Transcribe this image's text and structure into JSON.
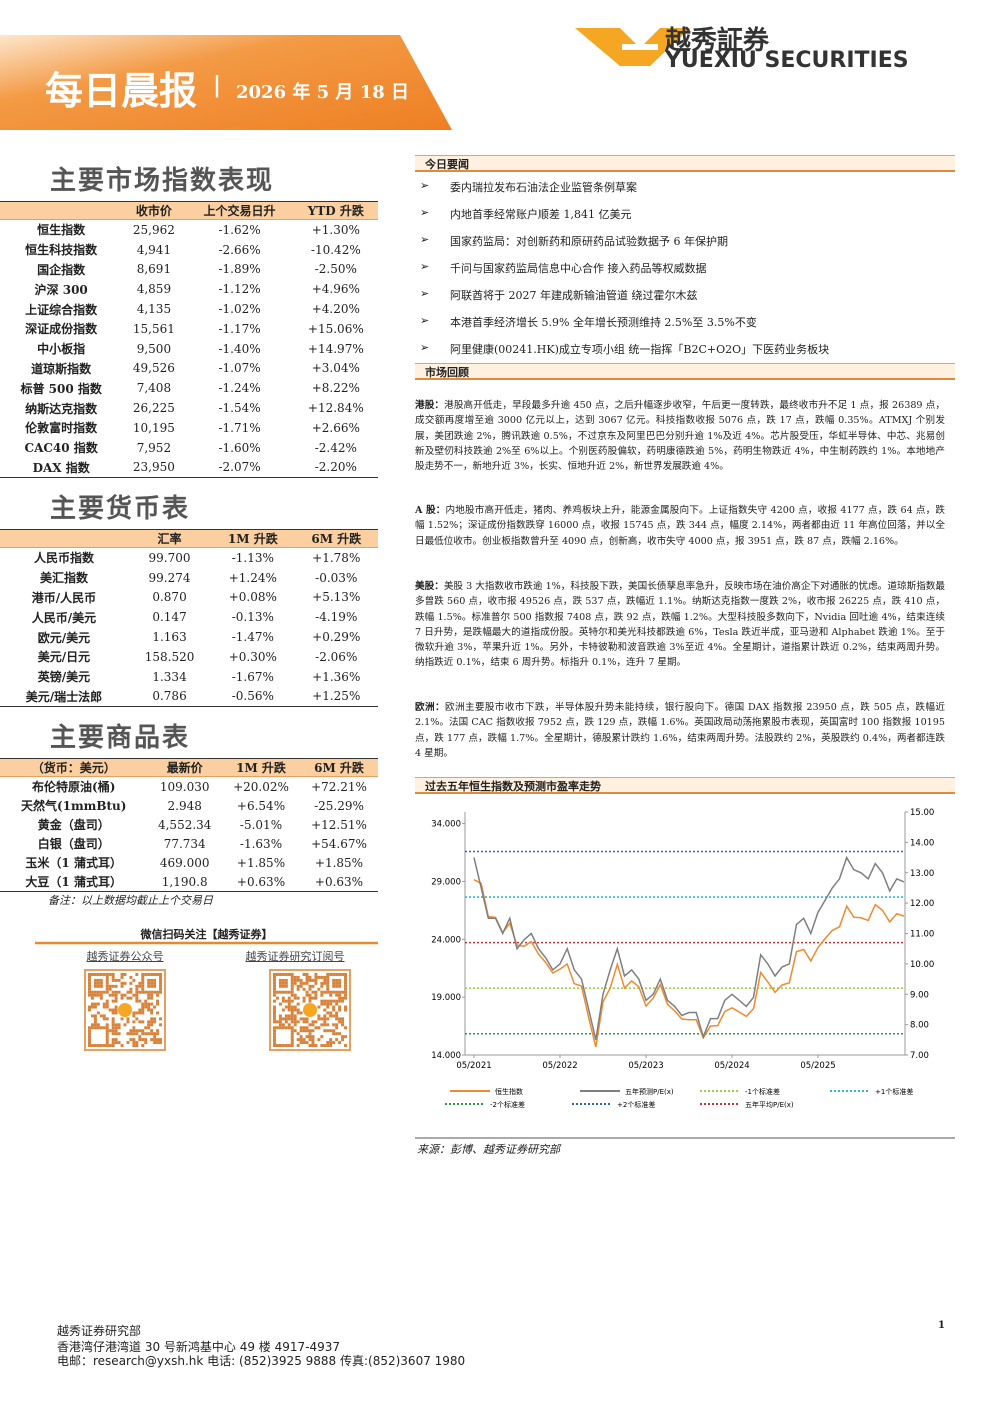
{
  "header": {
    "title": "每日晨报",
    "date": "2026 年 5 月 18 日",
    "logo_cn": "越秀証券",
    "logo_en": "YUEXIU SECURITIES"
  },
  "market_indices": {
    "title": "主要市场指数表现",
    "columns": [
      "收市价",
      "上个交易日升",
      "YTD 升跌"
    ],
    "rows": [
      [
        "恒生指数",
        "25,962",
        "-1.62%",
        "+1.30%"
      ],
      [
        "恒生科技指数",
        "4,941",
        "-2.66%",
        "-10.42%"
      ],
      [
        "国企指数",
        "8,691",
        "-1.89%",
        "-2.50%"
      ],
      [
        "沪深 300",
        "4,859",
        "-1.12%",
        "+4.96%"
      ],
      [
        "上证综合指数",
        "4,135",
        "-1.02%",
        "+4.20%"
      ],
      [
        "深证成份指数",
        "15,561",
        "-1.17%",
        "+15.06%"
      ],
      [
        "中小板指",
        "9,500",
        "-1.40%",
        "+14.97%"
      ],
      [
        "道琼斯指数",
        "49,526",
        "-1.07%",
        "+3.04%"
      ],
      [
        "标普 500 指数",
        "7,408",
        "-1.24%",
        "+8.22%"
      ],
      [
        "纳斯达克指数",
        "26,225",
        "-1.54%",
        "+12.84%"
      ],
      [
        "伦敦富时指数",
        "10,195",
        "-1.71%",
        "+2.66%"
      ],
      [
        "CAC40 指数",
        "7,952",
        "-1.60%",
        "-2.42%"
      ],
      [
        "DAX 指数",
        "23,950",
        "-2.07%",
        "-2.20%"
      ]
    ]
  },
  "currency": {
    "title": "主要货币表",
    "columns": [
      "汇率",
      "1M 升跌",
      "6M 升跌"
    ],
    "rows": [
      [
        "人民币指数",
        "99.700",
        "-1.13%",
        "+1.78%"
      ],
      [
        "美汇指数",
        "99.274",
        "+1.24%",
        "-0.03%"
      ],
      [
        "港币/人民币",
        "0.870",
        "+0.08%",
        "+5.13%"
      ],
      [
        "人民币/美元",
        "0.147",
        "-0.13%",
        "-4.19%"
      ],
      [
        "欧元/美元",
        "1.163",
        "-1.47%",
        "+0.29%"
      ],
      [
        "美元/日元",
        "158.520",
        "+0.30%",
        "-2.06%"
      ],
      [
        "英镑/美元",
        "1.334",
        "-1.67%",
        "+1.36%"
      ],
      [
        "美元/瑞士法郎",
        "0.786",
        "-0.56%",
        "+1.25%"
      ]
    ]
  },
  "commodity": {
    "title": "主要商品表",
    "corner": "（货币：美元）",
    "columns": [
      "最新价",
      "1M 升跌",
      "6M 升跌"
    ],
    "rows": [
      [
        "布伦特原油(桶)",
        "109.030",
        "+20.02%",
        "+72.21%"
      ],
      [
        "天然气(1mmBtu)",
        "2.948",
        "+6.54%",
        "-25.29%"
      ],
      [
        "黄金（盘司）",
        "4,552.34",
        "-5.01%",
        "+12.51%"
      ],
      [
        "白银（盘司）",
        "77.734",
        "-1.63%",
        "+54.67%"
      ],
      [
        "玉米（1 蒲式耳）",
        "469.000",
        "+1.85%",
        "+1.85%"
      ],
      [
        "大豆（1 蒲式耳）",
        "1,190.8",
        "+0.63%",
        "+0.63%"
      ]
    ]
  },
  "note": "备注：以上数据均截止上个交易日",
  "wechat": {
    "title": "微信扫码关注【越秀证券】",
    "labels": [
      "越秀证券公众号",
      "越秀证券研究订阅号"
    ]
  },
  "news": {
    "title": "今日要闻",
    "items": [
      "委内瑞拉发布石油法企业监管条例草案",
      "内地首季经常账户顺差 1,841 亿美元",
      "国家药监局：对创新药和原研药品试验数据予 6 年保护期",
      "千问与国家药监局信息中心合作 接入药品等权威数据",
      "阿联酋将于 2027 年建成新输油管道 绕过霍尔木兹",
      "本港首季经济增长 5.9% 全年增长预测维持 2.5%至 3.5%不变",
      "阿里健康(00241.HK)成立专项小组 统一指挥「B2C+O2O」下医药业务板块"
    ]
  },
  "review": {
    "title": "市场回顾",
    "paragraphs": [
      {
        "label": "港股：",
        "text": "港股高开低走，早段最多升逾 450 点，之后升幅逐步收窄，午后更一度转跌，最终收市升不足 1 点，报 26389 点，成交额再度增至逾 3000 亿元以上，达到 3067 亿元。科技指数收报 5076 点，跌 17 点，跌幅 0.35%。ATMXJ 个别发展，美团跌逾 2%，腾讯跌逾 0.5%，不过京东及阿里巴巴分别升逾 1%及近 4%。芯片股受压，华虹半导体、中芯、兆易创新及壁仞科技跌逾 2%至 6%以上。个别医药股偏软，药明康德跌逾 5%，药明生物跌近 4%，中生制药跌约 1%。本地地产股走势不一，新地升近 3%，长实、恒地升近 2%，新世界发展跌逾 4%。"
      },
      {
        "label": "A 股：",
        "text": "内地股市高开低走，猪肉、养鸡板块上升，能源金属股向下。上证指数失守 4200 点，收报 4177 点，跌 64 点，跌幅 1.52%；深证成份指数跌穿 16000 点，收报 15745 点，跌 344 点，幅度 2.14%，两者都由近 11 年高位回落，并以全日最低位收市。创业板指数曾升至 4090 点，创新高，收市失守 4000 点，报 3951 点，跌 87 点，跌幅 2.16%。"
      },
      {
        "label": "美股：",
        "text": "美股 3 大指数收市跌逾 1%，科技股下跌，美国长债孳息率急升，反映市场在油价高企下对通胀的忧虑。道琼斯指数最多曾跌 560 点，收市报 49526 点，跌 537 点，跌幅近 1.1%。纳斯达克指数一度跌 2%，收市报 26225 点，跌 410 点，跌幅 1.5%。标准普尔 500 指数报 7408 点，跌 92 点，跌幅 1.2%。大型科技股多数向下，Nvidia 回吐逾 4%，结束连续 7 日升势，是跌幅最大的道指成份股。英特尔和美光科技都跌逾 6%，Tesla 跌近半成，亚马逊和 Alphabet 跌逾 1%。至于微软升逾 3%，苹果升近 1%。另外，卡特彼勒和波音跌逾 3%至近 4%。全星期计，道指累计跌近 0.2%，结束两周升势。纳指跌近 0.1%，结束 6 周升势。标指升 0.1%，连升 7 星期。"
      },
      {
        "label": "欧洲：",
        "text": "欧洲主要股市收市下跌，半导体股升势未能持续，银行股向下。德国 DAX 指数报 23950 点，跌 505 点，跌幅近 2.1%。法国 CAC 指数收报 7952 点，跌 129 点，跌幅 1.6%。英国政局动荡拖累股市表现，英国富时 100 指数报 10195 点，跌 177 点，跌幅 1.7%。全星期计，德股累计跌约 1.6%，结束两周升势。法股跌约 2%，英股跌约 0.4%，两者都连跌 4 星期。"
      }
    ]
  },
  "chart_data": {
    "type": "line",
    "title": "过去五年恒生指数及预测市盈率走势",
    "categories": [
      "05/2021",
      null,
      null,
      null,
      null,
      null,
      null,
      null,
      null,
      null,
      null,
      null,
      "05/2022",
      null,
      null,
      null,
      null,
      null,
      null,
      null,
      null,
      null,
      null,
      null,
      "05/2023",
      null,
      null,
      null,
      null,
      null,
      null,
      null,
      null,
      null,
      null,
      null,
      "05/2024",
      null,
      null,
      null,
      null,
      null,
      null,
      null,
      null,
      null,
      null,
      null,
      "05/2025",
      null,
      null,
      null,
      null,
      null,
      null,
      null,
      null,
      null,
      null,
      null,
      null
    ],
    "ylim": [
      14000,
      35000
    ],
    "yticks": [
      {
        "value": 14000,
        "label": "14.000"
      },
      {
        "value": 19000,
        "label": "19.000"
      },
      {
        "value": 24000,
        "label": "24.000"
      },
      {
        "value": 29000,
        "label": "29.000"
      },
      {
        "value": 34000,
        "label": "34.000"
      }
    ],
    "y2lim": [
      7,
      15
    ],
    "y2ticks": [
      {
        "value": 7,
        "label": "7.00"
      },
      {
        "value": 8,
        "label": "8.00"
      },
      {
        "value": 9,
        "label": "9.00"
      },
      {
        "value": 10,
        "label": "10.00"
      },
      {
        "value": 11,
        "label": "11.00"
      },
      {
        "value": 12,
        "label": "12.00"
      },
      {
        "value": 13,
        "label": "13.00"
      },
      {
        "value": 14,
        "label": "14.00"
      },
      {
        "value": 15,
        "label": "15.00"
      }
    ],
    "series": [
      {
        "name": "恒生指数",
        "color": "#ef8a2e",
        "axis": "y",
        "values": [
          29150,
          28830,
          25960,
          25880,
          24580,
          25380,
          23480,
          23400,
          23800,
          22710,
          21990,
          21090,
          21420,
          21860,
          20160,
          19950,
          17220,
          14690,
          18600,
          19780,
          21840,
          19790,
          20400,
          19890,
          18230,
          18920,
          20080,
          18380,
          17810,
          17110,
          17040,
          17050,
          15490,
          16510,
          16540,
          17760,
          18080,
          17720,
          17340,
          17990,
          21130,
          20320,
          19420,
          20060,
          20230,
          22940,
          23120,
          22120,
          23290,
          24070,
          24770,
          25080,
          26860,
          25910,
          25860,
          25630,
          27000,
          26500,
          25500,
          26200,
          26000
        ]
      },
      {
        "name": "五年预测P/E(x)",
        "color": "#7f7f7f",
        "axis": "y2",
        "values": [
          13.5,
          12.5,
          11.5,
          11.5,
          11.0,
          11.5,
          10.5,
          10.8,
          11.0,
          10.5,
          10.2,
          9.8,
          10.0,
          10.5,
          9.8,
          9.5,
          8.5,
          7.5,
          9.0,
          9.8,
          10.5,
          9.6,
          9.8,
          9.5,
          8.8,
          9.0,
          9.5,
          8.8,
          8.6,
          8.3,
          8.4,
          8.4,
          7.6,
          8.2,
          8.2,
          8.8,
          9.0,
          8.8,
          8.6,
          8.9,
          10.3,
          10.0,
          9.6,
          9.9,
          10.0,
          11.3,
          11.5,
          11.0,
          11.7,
          12.1,
          12.5,
          12.8,
          13.5,
          13.1,
          13.0,
          12.8,
          13.3,
          13.0,
          12.4,
          12.8,
          12.7
        ]
      }
    ],
    "hlines": [
      {
        "name": "-1个标准差",
        "color": "#9bd14f",
        "value": 9.2
      },
      {
        "name": "+1个标准差",
        "color": "#2fb6d8",
        "value": 12.2
      },
      {
        "name": "-2个标准差",
        "color": "#2a9a4a",
        "value": 7.7
      },
      {
        "name": "+2个标准差",
        "color": "#2a62c8",
        "value": 13.7
      },
      {
        "name": "五年平均P/E(x)",
        "color": "#c8323a",
        "value": 10.7
      }
    ],
    "source": "来源：彭博、越秀证券研究部"
  },
  "footer": {
    "dept": "越秀证券研究部",
    "address": "香港湾仔港湾道 30 号新鸿基中心 49 楼 4917-4937",
    "contact": "电邮：research@yxsh.hk 电话: (852)3925 9888 传真:(852)3607 1980",
    "page": "1"
  }
}
